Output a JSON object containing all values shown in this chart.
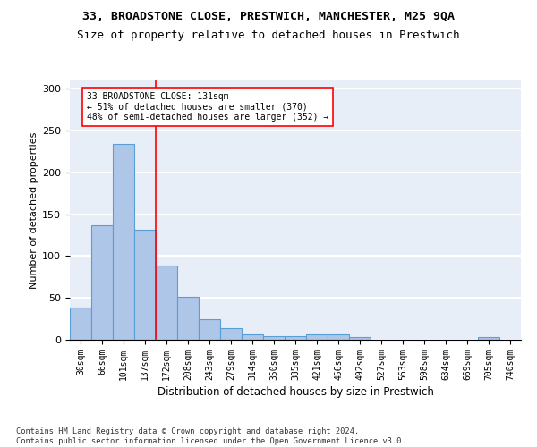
{
  "title_line1": "33, BROADSTONE CLOSE, PRESTWICH, MANCHESTER, M25 9QA",
  "title_line2": "Size of property relative to detached houses in Prestwich",
  "xlabel": "Distribution of detached houses by size in Prestwich",
  "ylabel": "Number of detached properties",
  "footnote": "Contains HM Land Registry data © Crown copyright and database right 2024.\nContains public sector information licensed under the Open Government Licence v3.0.",
  "bar_labels": [
    "30sqm",
    "66sqm",
    "101sqm",
    "137sqm",
    "172sqm",
    "208sqm",
    "243sqm",
    "279sqm",
    "314sqm",
    "350sqm",
    "385sqm",
    "421sqm",
    "456sqm",
    "492sqm",
    "527sqm",
    "563sqm",
    "598sqm",
    "634sqm",
    "669sqm",
    "705sqm",
    "740sqm"
  ],
  "bar_values": [
    38,
    137,
    234,
    131,
    89,
    51,
    25,
    14,
    6,
    4,
    4,
    6,
    6,
    3,
    0,
    0,
    0,
    0,
    0,
    3,
    0
  ],
  "bar_color": "#aec6e8",
  "bar_edgecolor": "#5a9fd4",
  "bar_linewidth": 0.8,
  "vline_x": 3.5,
  "vline_color": "red",
  "vline_linewidth": 1.2,
  "annotation_text": "33 BROADSTONE CLOSE: 131sqm\n← 51% of detached houses are smaller (370)\n48% of semi-detached houses are larger (352) →",
  "annotation_box_facecolor": "white",
  "annotation_box_edgecolor": "red",
  "ylim": [
    0,
    310
  ],
  "yticks": [
    0,
    50,
    100,
    150,
    200,
    250,
    300
  ],
  "background_color": "#e8eef7",
  "grid_color": "white",
  "title1_fontsize": 9.5,
  "title2_fontsize": 9,
  "ylabel_fontsize": 8,
  "xlabel_fontsize": 8.5,
  "tick_fontsize": 7,
  "ytick_fontsize": 8,
  "footnote_fontsize": 6.2,
  "annotation_fontsize": 7
}
